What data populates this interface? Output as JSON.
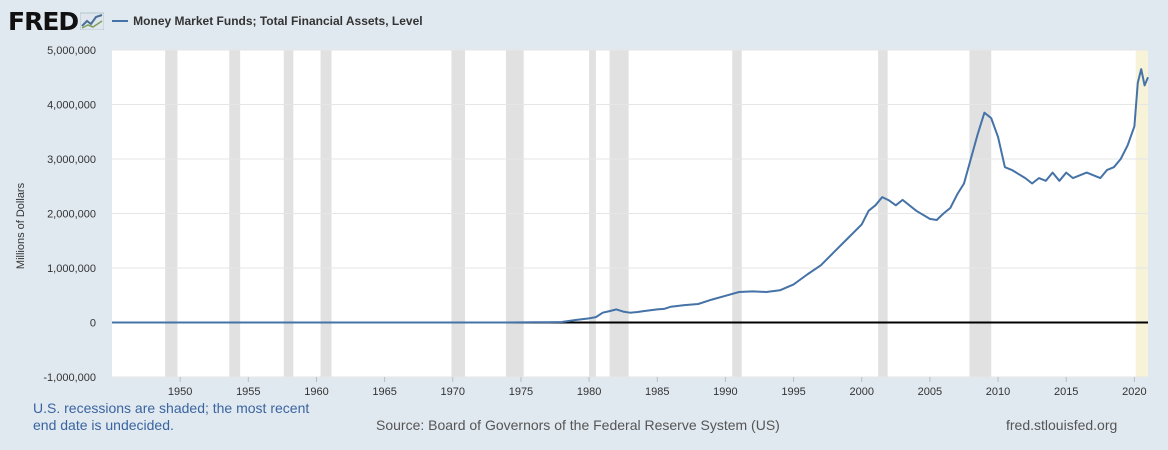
{
  "header": {
    "logo_text": "FRED",
    "series_title": "Money Market Funds; Total Financial Assets, Level",
    "series_color": "#4572a7"
  },
  "footer": {
    "recession_note": "U.S. recessions are shaded; the most recent end date is undecided.",
    "source": "Source: Board of Governors of the Federal Reserve System (US)",
    "site": "fred.stlouisfed.org"
  },
  "chart_data": {
    "type": "line",
    "title": "Money Market Funds; Total Financial Assets, Level",
    "xlabel": "",
    "ylabel": "Millions of Dollars",
    "xlim": [
      1945,
      2021
    ],
    "ylim": [
      -1000000,
      5000000
    ],
    "yticks": [
      -1000000,
      0,
      1000000,
      2000000,
      3000000,
      4000000,
      5000000
    ],
    "ytick_labels": [
      "-1,000,000",
      "0",
      "1,000,000",
      "2,000,000",
      "3,000,000",
      "4,000,000",
      "5,000,000"
    ],
    "xticks": [
      1950,
      1955,
      1960,
      1965,
      1970,
      1975,
      1980,
      1985,
      1990,
      1995,
      2000,
      2005,
      2010,
      2015,
      2020
    ],
    "recessions": [
      [
        1948.9,
        1949.8
      ],
      [
        1953.6,
        1954.4
      ],
      [
        1957.6,
        1958.3
      ],
      [
        1960.3,
        1961.1
      ],
      [
        1969.9,
        1970.9
      ],
      [
        1973.9,
        1975.2
      ],
      [
        1980.0,
        1980.5
      ],
      [
        1981.5,
        1982.9
      ],
      [
        1990.5,
        1991.2
      ],
      [
        2001.2,
        2001.9
      ],
      [
        2007.9,
        2009.5
      ]
    ],
    "recession_ongoing": [
      2020.1,
      2021.0
    ],
    "series": [
      {
        "name": "Money Market Funds; Total Financial Assets, Level",
        "color": "#4572a7",
        "x": [
          1945,
          1974,
          1975,
          1976,
          1977,
          1978,
          1979,
          1980,
          1980.5,
          1981,
          1981.5,
          1982,
          1982.5,
          1983,
          1983.5,
          1984,
          1985,
          1985.5,
          1986,
          1987,
          1988,
          1989,
          1990,
          1991,
          1992,
          1993,
          1994,
          1995,
          1996,
          1997,
          1998,
          1999,
          2000,
          2000.5,
          2001,
          2001.5,
          2002,
          2002.5,
          2003,
          2004,
          2005,
          2005.5,
          2006,
          2006.5,
          2007,
          2007.5,
          2008,
          2008.5,
          2009,
          2009.5,
          2010,
          2010.5,
          2011,
          2012,
          2012.5,
          2013,
          2013.5,
          2014,
          2014.5,
          2015,
          2015.5,
          2016,
          2016.5,
          2017,
          2017.5,
          2018,
          2018.5,
          2019,
          2019.5,
          2020,
          2020.25,
          2020.5,
          2020.75,
          2021
        ],
        "values": [
          0,
          0,
          2000,
          3000,
          4000,
          10000,
          45000,
          75000,
          100000,
          180000,
          210000,
          240000,
          200000,
          180000,
          190000,
          210000,
          240000,
          250000,
          290000,
          320000,
          340000,
          420000,
          490000,
          560000,
          570000,
          560000,
          590000,
          700000,
          880000,
          1050000,
          1300000,
          1550000,
          1800000,
          2050000,
          2150000,
          2300000,
          2240000,
          2150000,
          2250000,
          2050000,
          1900000,
          1880000,
          2000000,
          2100000,
          2350000,
          2550000,
          3000000,
          3450000,
          3850000,
          3750000,
          3400000,
          2850000,
          2800000,
          2650000,
          2550000,
          2650000,
          2600000,
          2750000,
          2600000,
          2750000,
          2650000,
          2700000,
          2750000,
          2700000,
          2650000,
          2800000,
          2850000,
          3000000,
          3250000,
          3600000,
          4400000,
          4650000,
          4350000,
          4500000
        ]
      }
    ]
  }
}
